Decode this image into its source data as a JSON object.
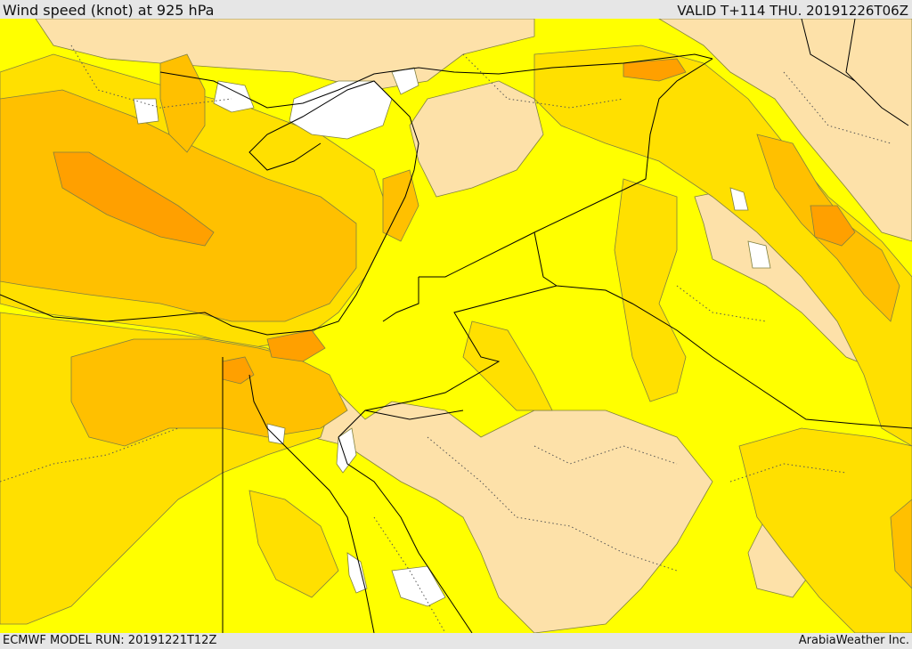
{
  "header": {
    "title": "Wind speed (knot) at 925 hPa",
    "valid_time": "VALID T+114 THU. 20191226T06Z"
  },
  "footer": {
    "model_run": "ECMWF MODEL RUN: 20191221T12Z",
    "credit": "ArabiaWeather Inc."
  },
  "colors": {
    "calm_white": "#ffffff",
    "light_tan": "#fde1a9",
    "yellow": "#ffff00",
    "gold": "#ffe000",
    "light_orange": "#ffc000",
    "orange": "#ffa000",
    "contour_line": "#808040",
    "border_line": "#000000"
  },
  "icons": {
    "map": "weather-map"
  }
}
